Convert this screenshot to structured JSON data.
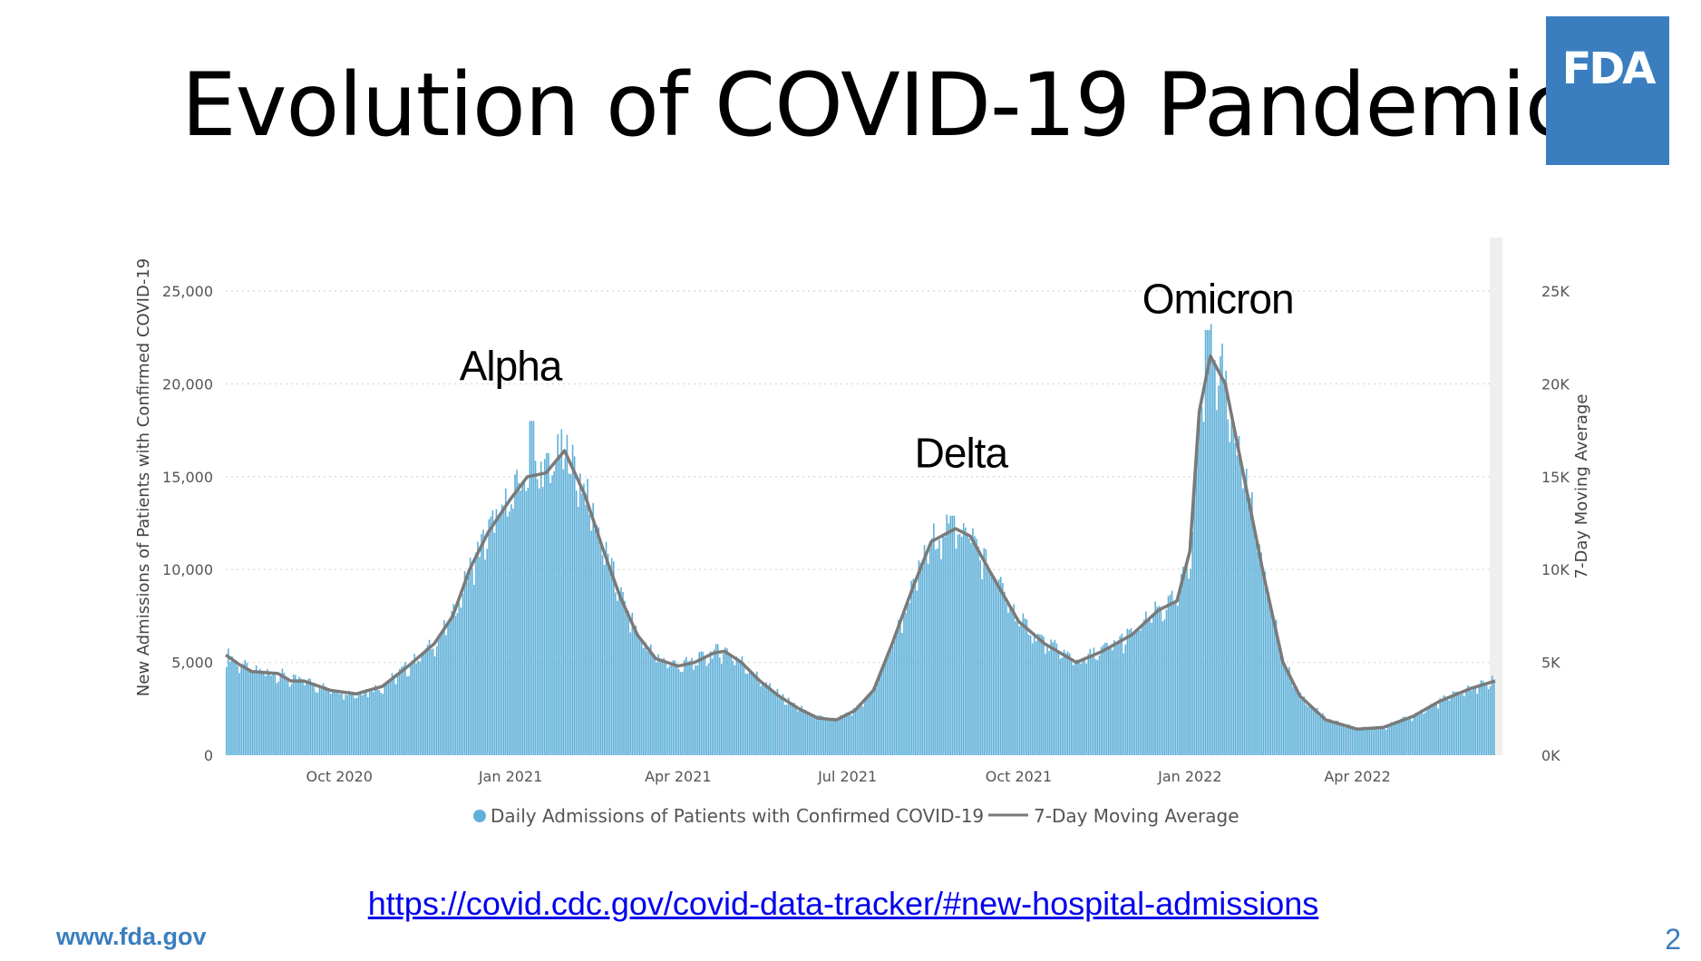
{
  "slide": {
    "title": "Evolution of COVID-19 Pandemic",
    "logo_text": "FDA",
    "source_link": "https://covid.cdc.gov/covid-data-tracker/#new-hospital-admissions",
    "footer_url": "www.fda.gov",
    "page_number": "2"
  },
  "colors": {
    "bar": "#5fb0d8",
    "line": "#7a7a7a",
    "brand": "#3a7ebf",
    "grid": "#dddddd",
    "link": "#0000ee"
  },
  "chart_data": {
    "type": "bar",
    "y_title": "New Admissions of Patients with Confirmed COVID-19",
    "y2_title": "7-Day Moving Average",
    "ylim": [
      0,
      27000
    ],
    "y_ticks": [
      {
        "value": 0,
        "label": "0"
      },
      {
        "value": 5000,
        "label": "5,000"
      },
      {
        "value": 10000,
        "label": "10,000"
      },
      {
        "value": 15000,
        "label": "15,000"
      },
      {
        "value": 20000,
        "label": "20,000"
      },
      {
        "value": 25000,
        "label": "25,000"
      }
    ],
    "y2_ticks": [
      {
        "value": 0,
        "label": "0K"
      },
      {
        "value": 5000,
        "label": "5K"
      },
      {
        "value": 10000,
        "label": "10K"
      },
      {
        "value": 15000,
        "label": "15K"
      },
      {
        "value": 20000,
        "label": "20K"
      },
      {
        "value": 25000,
        "label": "25K"
      }
    ],
    "x_range": [
      "2020-08-01",
      "2022-06-14"
    ],
    "x_ticks": [
      {
        "date": "2020-10-01",
        "label": "Oct 2020"
      },
      {
        "date": "2021-01-01",
        "label": "Jan 2021"
      },
      {
        "date": "2021-04-01",
        "label": "Apr 2021"
      },
      {
        "date": "2021-07-01",
        "label": "Jul 2021"
      },
      {
        "date": "2021-10-01",
        "label": "Oct 2021"
      },
      {
        "date": "2022-01-01",
        "label": "Jan 2022"
      },
      {
        "date": "2022-04-01",
        "label": "Apr 2022"
      }
    ],
    "grid": true,
    "legend_position": "bottom",
    "series": [
      {
        "name": "7-Day Moving Average",
        "type": "line",
        "points": [
          {
            "date": "2020-08-01",
            "value": 5400
          },
          {
            "date": "2020-08-08",
            "value": 4900
          },
          {
            "date": "2020-08-15",
            "value": 4500
          },
          {
            "date": "2020-08-29",
            "value": 4400
          },
          {
            "date": "2020-09-05",
            "value": 4000
          },
          {
            "date": "2020-09-12",
            "value": 4000
          },
          {
            "date": "2020-09-26",
            "value": 3500
          },
          {
            "date": "2020-10-10",
            "value": 3300
          },
          {
            "date": "2020-10-24",
            "value": 3700
          },
          {
            "date": "2020-11-07",
            "value": 4800
          },
          {
            "date": "2020-11-21",
            "value": 6000
          },
          {
            "date": "2020-12-01",
            "value": 7500
          },
          {
            "date": "2020-12-10",
            "value": 10000
          },
          {
            "date": "2020-12-20",
            "value": 12000
          },
          {
            "date": "2021-01-01",
            "value": 13800
          },
          {
            "date": "2021-01-10",
            "value": 15000
          },
          {
            "date": "2021-01-20",
            "value": 15200
          },
          {
            "date": "2021-01-30",
            "value": 16400
          },
          {
            "date": "2021-02-10",
            "value": 14000
          },
          {
            "date": "2021-02-20",
            "value": 11000
          },
          {
            "date": "2021-03-01",
            "value": 8500
          },
          {
            "date": "2021-03-10",
            "value": 6500
          },
          {
            "date": "2021-03-20",
            "value": 5200
          },
          {
            "date": "2021-04-01",
            "value": 4800
          },
          {
            "date": "2021-04-10",
            "value": 5000
          },
          {
            "date": "2021-04-20",
            "value": 5500
          },
          {
            "date": "2021-04-26",
            "value": 5600
          },
          {
            "date": "2021-05-05",
            "value": 5000
          },
          {
            "date": "2021-05-15",
            "value": 4000
          },
          {
            "date": "2021-05-25",
            "value": 3200
          },
          {
            "date": "2021-06-05",
            "value": 2500
          },
          {
            "date": "2021-06-15",
            "value": 2000
          },
          {
            "date": "2021-06-25",
            "value": 1900
          },
          {
            "date": "2021-07-05",
            "value": 2400
          },
          {
            "date": "2021-07-15",
            "value": 3500
          },
          {
            "date": "2021-07-25",
            "value": 6000
          },
          {
            "date": "2021-08-05",
            "value": 9000
          },
          {
            "date": "2021-08-15",
            "value": 11500
          },
          {
            "date": "2021-08-28",
            "value": 12200
          },
          {
            "date": "2021-09-05",
            "value": 11800
          },
          {
            "date": "2021-09-15",
            "value": 10000
          },
          {
            "date": "2021-10-01",
            "value": 7200
          },
          {
            "date": "2021-10-15",
            "value": 6000
          },
          {
            "date": "2021-11-01",
            "value": 5000
          },
          {
            "date": "2021-11-15",
            "value": 5600
          },
          {
            "date": "2021-12-01",
            "value": 6500
          },
          {
            "date": "2021-12-15",
            "value": 7800
          },
          {
            "date": "2021-12-25",
            "value": 8300
          },
          {
            "date": "2022-01-01",
            "value": 11000
          },
          {
            "date": "2022-01-06",
            "value": 18500
          },
          {
            "date": "2022-01-12",
            "value": 21500
          },
          {
            "date": "2022-01-20",
            "value": 20000
          },
          {
            "date": "2022-01-30",
            "value": 15000
          },
          {
            "date": "2022-02-10",
            "value": 9500
          },
          {
            "date": "2022-02-20",
            "value": 5000
          },
          {
            "date": "2022-03-01",
            "value": 3200
          },
          {
            "date": "2022-03-15",
            "value": 1900
          },
          {
            "date": "2022-04-01",
            "value": 1400
          },
          {
            "date": "2022-04-15",
            "value": 1500
          },
          {
            "date": "2022-05-01",
            "value": 2100
          },
          {
            "date": "2022-05-15",
            "value": 2900
          },
          {
            "date": "2022-06-01",
            "value": 3600
          },
          {
            "date": "2022-06-14",
            "value": 4000
          }
        ]
      },
      {
        "name": "Daily Admissions of Patients with Confirmed COVID-19",
        "type": "bar",
        "noise_amplitude": 0.07,
        "peaks": [
          {
            "date": "2021-01-12",
            "value": 18000
          },
          {
            "date": "2021-08-26",
            "value": 12900
          },
          {
            "date": "2022-01-10",
            "value": 22900
          }
        ]
      }
    ],
    "annotations": [
      {
        "text": "Alpha",
        "date": "2021-01-01",
        "value": 20200
      },
      {
        "text": "Delta",
        "date": "2021-08-31",
        "value": 15500
      },
      {
        "text": "Omicron",
        "date": "2022-01-16",
        "value": 23800
      }
    ]
  }
}
